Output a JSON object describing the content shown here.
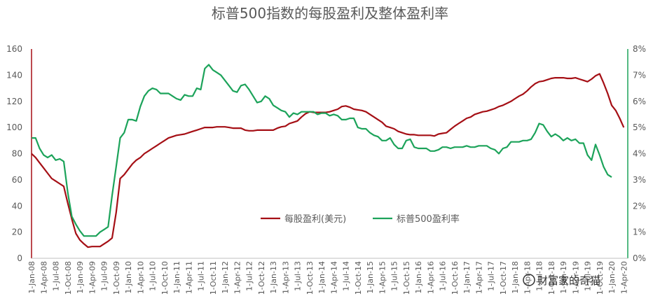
{
  "chart_data": {
    "type": "line",
    "title": "标普500指数的每股盈利及整体盈利率",
    "xlabel": "",
    "ylabel": "",
    "ylim": [
      0,
      160
    ],
    "y_ticks": [
      0,
      20,
      40,
      60,
      80,
      100,
      120,
      140,
      160
    ],
    "y2lim": [
      0,
      8
    ],
    "y2_ticks": [
      "0%",
      "1%",
      "2%",
      "3%",
      "4%",
      "5%",
      "6%",
      "7%",
      "8%"
    ],
    "grid": false,
    "legend_position": "center",
    "x_tick_labels": [
      "1-Jan-08",
      "1-Apr-08",
      "1-Jul-08",
      "1-Oct-08",
      "1-Jan-09",
      "1-Apr-09",
      "1-Jul-09",
      "1-Oct-09",
      "1-Jan-10",
      "1-Apr-10",
      "1-Jul-10",
      "1-Oct-10",
      "1-Jan-11",
      "1-Apr-11",
      "1-Jul-11",
      "1-Oct-11",
      "1-Jan-12",
      "1-Apr-12",
      "1-Jul-12",
      "1-Oct-12",
      "1-Jan-13",
      "1-Apr-13",
      "1-Jul-13",
      "1-Oct-13",
      "1-Jan-14",
      "1-Apr-14",
      "1-Jul-14",
      "1-Oct-14",
      "1-Jan-15",
      "1-Apr-15",
      "1-Jul-15",
      "1-Oct-15",
      "1-Jan-16",
      "1-Apr-16",
      "1-Jul-16",
      "1-Oct-16",
      "1-Jan-17",
      "1-Apr-17",
      "1-Jul-17",
      "1-Oct-17",
      "1-Jan-18",
      "1-Apr-18",
      "1-Jul-18",
      "1-Oct-18",
      "1-Jan-19",
      "1-Apr-19",
      "1-Jul-19",
      "1-Oct-19",
      "1-Jan-20",
      "1-Apr-20"
    ],
    "series": [
      {
        "name": "每股盈利(美元)",
        "axis": "left",
        "color": "#a50f15",
        "points": [
          [
            0,
            80
          ],
          [
            1,
            77
          ],
          [
            2,
            73
          ],
          [
            3,
            69
          ],
          [
            4,
            65
          ],
          [
            5,
            61
          ],
          [
            6,
            59
          ],
          [
            7,
            57
          ],
          [
            8,
            55
          ],
          [
            9,
            42
          ],
          [
            10,
            30
          ],
          [
            11,
            19
          ],
          [
            12,
            14
          ],
          [
            13,
            11
          ],
          [
            14,
            8.5
          ],
          [
            15,
            9
          ],
          [
            16,
            9
          ],
          [
            17,
            9
          ],
          [
            18,
            11
          ],
          [
            19,
            13
          ],
          [
            20,
            15.5
          ],
          [
            21,
            35
          ],
          [
            22,
            61
          ],
          [
            23,
            64
          ],
          [
            24,
            68
          ],
          [
            25,
            72
          ],
          [
            26,
            75
          ],
          [
            27,
            77
          ],
          [
            28,
            80
          ],
          [
            29,
            82
          ],
          [
            30,
            84
          ],
          [
            31,
            86
          ],
          [
            32,
            88
          ],
          [
            33,
            90
          ],
          [
            34,
            92
          ],
          [
            35,
            93
          ],
          [
            36,
            94
          ],
          [
            37,
            94.5
          ],
          [
            38,
            95
          ],
          [
            39,
            96
          ],
          [
            40,
            97
          ],
          [
            41,
            98
          ],
          [
            42,
            99
          ],
          [
            43,
            100
          ],
          [
            44,
            100
          ],
          [
            45,
            100
          ],
          [
            46,
            100.5
          ],
          [
            47,
            100.5
          ],
          [
            48,
            100.5
          ],
          [
            49,
            100
          ],
          [
            50,
            99.5
          ],
          [
            51,
            99.5
          ],
          [
            52,
            99.5
          ],
          [
            53,
            98
          ],
          [
            54,
            97.5
          ],
          [
            55,
            97.5
          ],
          [
            56,
            98
          ],
          [
            57,
            98
          ],
          [
            58,
            98
          ],
          [
            59,
            98
          ],
          [
            60,
            98
          ],
          [
            61,
            99.5
          ],
          [
            62,
            100.5
          ],
          [
            63,
            101
          ],
          [
            64,
            103
          ],
          [
            65,
            104
          ],
          [
            66,
            105
          ],
          [
            67,
            108
          ],
          [
            68,
            110.5
          ],
          [
            69,
            112
          ],
          [
            70,
            111.5
          ],
          [
            71,
            111.5
          ],
          [
            72,
            111.5
          ],
          [
            73,
            111.5
          ],
          [
            74,
            112
          ],
          [
            75,
            113
          ],
          [
            76,
            114
          ],
          [
            77,
            116
          ],
          [
            78,
            116.5
          ],
          [
            79,
            115.5
          ],
          [
            80,
            114
          ],
          [
            81,
            113.5
          ],
          [
            82,
            113
          ],
          [
            83,
            112
          ],
          [
            84,
            110
          ],
          [
            85,
            108
          ],
          [
            86,
            106
          ],
          [
            87,
            104
          ],
          [
            88,
            101
          ],
          [
            89,
            100
          ],
          [
            90,
            99
          ],
          [
            91,
            97
          ],
          [
            92,
            96
          ],
          [
            93,
            95
          ],
          [
            94,
            94.5
          ],
          [
            95,
            94.5
          ],
          [
            96,
            94
          ],
          [
            97,
            94
          ],
          [
            98,
            94
          ],
          [
            99,
            94
          ],
          [
            100,
            93.5
          ],
          [
            101,
            95
          ],
          [
            102,
            95.5
          ],
          [
            103,
            96
          ],
          [
            104,
            98.5
          ],
          [
            105,
            101
          ],
          [
            106,
            103
          ],
          [
            107,
            105
          ],
          [
            108,
            107
          ],
          [
            109,
            108
          ],
          [
            110,
            110
          ],
          [
            111,
            111
          ],
          [
            112,
            112
          ],
          [
            113,
            112.5
          ],
          [
            114,
            113.5
          ],
          [
            115,
            114.5
          ],
          [
            116,
            116
          ],
          [
            117,
            117
          ],
          [
            118,
            118.5
          ],
          [
            119,
            120
          ],
          [
            120,
            122
          ],
          [
            121,
            124
          ],
          [
            122,
            125.5
          ],
          [
            123,
            128
          ],
          [
            124,
            131
          ],
          [
            125,
            133.5
          ],
          [
            126,
            135
          ],
          [
            127,
            135.5
          ],
          [
            128,
            136.5
          ],
          [
            129,
            137.5
          ],
          [
            130,
            138
          ],
          [
            131,
            138
          ],
          [
            132,
            138
          ],
          [
            133,
            137.5
          ],
          [
            134,
            137.5
          ],
          [
            135,
            138
          ],
          [
            136,
            137
          ],
          [
            137,
            136
          ],
          [
            138,
            135
          ],
          [
            139,
            137
          ],
          [
            140,
            139.5
          ],
          [
            141,
            141
          ],
          [
            142,
            134
          ],
          [
            143,
            126
          ],
          [
            144,
            117
          ],
          [
            145,
            113
          ],
          [
            146,
            107
          ],
          [
            147,
            100
          ]
        ]
      },
      {
        "name": "标普500盈利率",
        "axis": "right",
        "color": "#1ca35a",
        "points": [
          [
            0,
            4.6
          ],
          [
            1,
            4.6
          ],
          [
            2,
            4.2
          ],
          [
            3,
            3.95
          ],
          [
            4,
            3.85
          ],
          [
            5,
            3.95
          ],
          [
            6,
            3.75
          ],
          [
            7,
            3.8
          ],
          [
            8,
            3.7
          ],
          [
            9,
            2.5
          ],
          [
            10,
            1.6
          ],
          [
            11,
            1.3
          ],
          [
            12,
            1.05
          ],
          [
            13,
            0.85
          ],
          [
            14,
            0.85
          ],
          [
            15,
            0.85
          ],
          [
            16,
            0.85
          ],
          [
            17,
            1.0
          ],
          [
            18,
            1.1
          ],
          [
            19,
            1.2
          ],
          [
            20,
            2.4
          ],
          [
            21,
            3.5
          ],
          [
            22,
            4.6
          ],
          [
            23,
            4.8
          ],
          [
            24,
            5.3
          ],
          [
            25,
            5.3
          ],
          [
            26,
            5.25
          ],
          [
            27,
            5.8
          ],
          [
            28,
            6.2
          ],
          [
            29,
            6.4
          ],
          [
            30,
            6.5
          ],
          [
            31,
            6.45
          ],
          [
            32,
            6.3
          ],
          [
            33,
            6.3
          ],
          [
            34,
            6.3
          ],
          [
            35,
            6.2
          ],
          [
            36,
            6.1
          ],
          [
            37,
            6.05
          ],
          [
            38,
            6.25
          ],
          [
            39,
            6.2
          ],
          [
            40,
            6.2
          ],
          [
            41,
            6.5
          ],
          [
            42,
            6.45
          ],
          [
            43,
            7.25
          ],
          [
            44,
            7.4
          ],
          [
            45,
            7.2
          ],
          [
            46,
            7.1
          ],
          [
            47,
            7.0
          ],
          [
            48,
            6.8
          ],
          [
            49,
            6.6
          ],
          [
            50,
            6.4
          ],
          [
            51,
            6.35
          ],
          [
            52,
            6.6
          ],
          [
            53,
            6.65
          ],
          [
            54,
            6.45
          ],
          [
            55,
            6.2
          ],
          [
            56,
            5.95
          ],
          [
            57,
            6.0
          ],
          [
            58,
            6.2
          ],
          [
            59,
            6.1
          ],
          [
            60,
            5.85
          ],
          [
            61,
            5.75
          ],
          [
            62,
            5.65
          ],
          [
            63,
            5.6
          ],
          [
            64,
            5.4
          ],
          [
            65,
            5.55
          ],
          [
            66,
            5.5
          ],
          [
            67,
            5.6
          ],
          [
            68,
            5.6
          ],
          [
            69,
            5.6
          ],
          [
            70,
            5.6
          ],
          [
            71,
            5.5
          ],
          [
            72,
            5.55
          ],
          [
            73,
            5.55
          ],
          [
            74,
            5.45
          ],
          [
            75,
            5.5
          ],
          [
            76,
            5.45
          ],
          [
            77,
            5.3
          ],
          [
            78,
            5.3
          ],
          [
            79,
            5.35
          ],
          [
            80,
            5.35
          ],
          [
            81,
            5.0
          ],
          [
            82,
            4.95
          ],
          [
            83,
            4.95
          ],
          [
            84,
            4.8
          ],
          [
            85,
            4.7
          ],
          [
            86,
            4.65
          ],
          [
            87,
            4.5
          ],
          [
            88,
            4.5
          ],
          [
            89,
            4.6
          ],
          [
            90,
            4.35
          ],
          [
            91,
            4.2
          ],
          [
            92,
            4.2
          ],
          [
            93,
            4.5
          ],
          [
            94,
            4.55
          ],
          [
            95,
            4.25
          ],
          [
            96,
            4.2
          ],
          [
            97,
            4.2
          ],
          [
            98,
            4.2
          ],
          [
            99,
            4.1
          ],
          [
            100,
            4.1
          ],
          [
            101,
            4.15
          ],
          [
            102,
            4.25
          ],
          [
            103,
            4.25
          ],
          [
            104,
            4.2
          ],
          [
            105,
            4.25
          ],
          [
            106,
            4.25
          ],
          [
            107,
            4.25
          ],
          [
            108,
            4.3
          ],
          [
            109,
            4.25
          ],
          [
            110,
            4.25
          ],
          [
            111,
            4.3
          ],
          [
            112,
            4.3
          ],
          [
            113,
            4.3
          ],
          [
            114,
            4.2
          ],
          [
            115,
            4.15
          ],
          [
            116,
            4.0
          ],
          [
            117,
            4.2
          ],
          [
            118,
            4.25
          ],
          [
            119,
            4.45
          ],
          [
            120,
            4.45
          ],
          [
            121,
            4.45
          ],
          [
            122,
            4.5
          ],
          [
            123,
            4.5
          ],
          [
            124,
            4.55
          ],
          [
            125,
            4.8
          ],
          [
            126,
            5.15
          ],
          [
            127,
            5.1
          ],
          [
            128,
            4.85
          ],
          [
            129,
            4.65
          ],
          [
            130,
            4.75
          ],
          [
            131,
            4.65
          ],
          [
            132,
            4.5
          ],
          [
            133,
            4.6
          ],
          [
            134,
            4.5
          ],
          [
            135,
            4.55
          ],
          [
            136,
            4.4
          ],
          [
            137,
            4.4
          ],
          [
            138,
            3.95
          ],
          [
            139,
            3.75
          ],
          [
            140,
            4.35
          ],
          [
            141,
            3.95
          ],
          [
            142,
            3.5
          ],
          [
            143,
            3.2
          ],
          [
            144,
            3.1
          ]
        ]
      }
    ],
    "watermark": "财富家的奇猫"
  }
}
